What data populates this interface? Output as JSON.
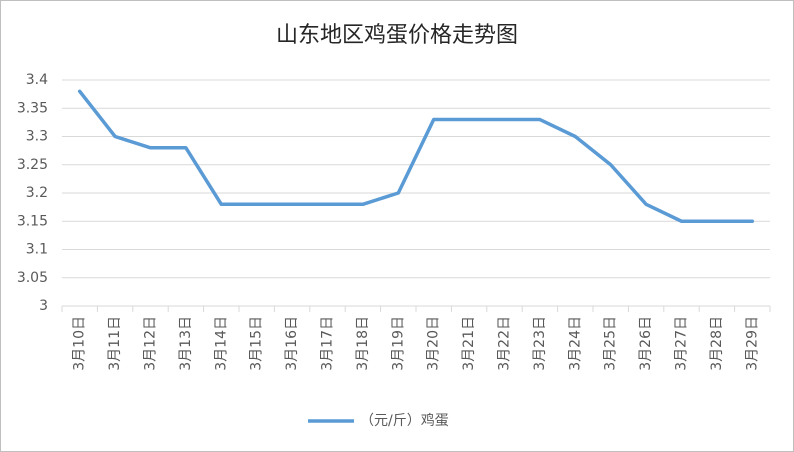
{
  "chart_data": {
    "type": "line",
    "title": "山东地区鸡蛋价格走势图",
    "categories": [
      "3月10日",
      "3月11日",
      "3月12日",
      "3月13日",
      "3月14日",
      "3月15日",
      "3月16日",
      "3月17日",
      "3月18日",
      "3月19日",
      "3月20日",
      "3月21日",
      "3月22日",
      "3月23日",
      "3月24日",
      "3月25日",
      "3月26日",
      "3月27日",
      "3月28日",
      "3月29日"
    ],
    "series": [
      {
        "name": "（元/斤）鸡蛋",
        "color": "#5b9bd5",
        "values": [
          3.38,
          3.3,
          3.28,
          3.28,
          3.18,
          3.18,
          3.18,
          3.18,
          3.18,
          3.2,
          3.33,
          3.33,
          3.33,
          3.33,
          3.3,
          3.25,
          3.18,
          3.15,
          3.15,
          3.15
        ]
      }
    ],
    "ylim": [
      3,
      3.4
    ],
    "yticks": [
      3,
      3.05,
      3.1,
      3.15,
      3.2,
      3.25,
      3.3,
      3.35,
      3.4
    ],
    "grid": true,
    "legend": "bottom"
  }
}
